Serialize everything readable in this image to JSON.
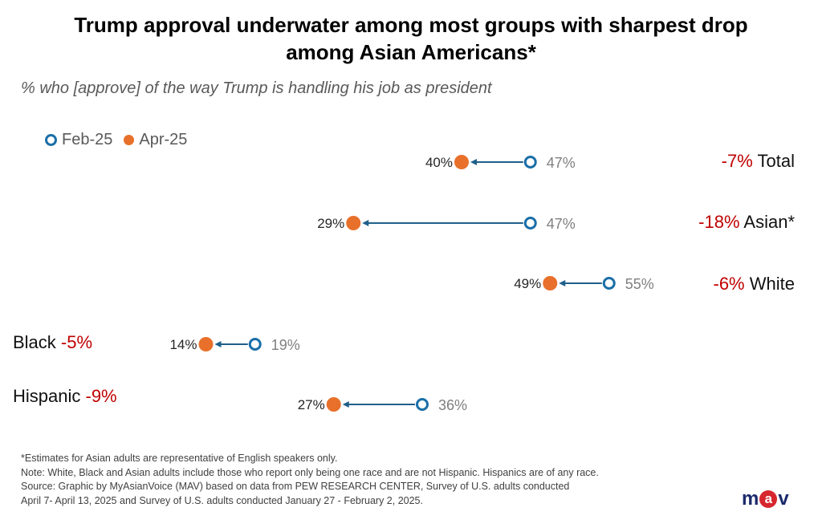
{
  "header": {
    "title_line1": "Trump approval underwater among most groups with sharpest drop",
    "title_line2": "among Asian Americans*",
    "subtitle": "% who [approve] of the way Trump is handling his job as president"
  },
  "legend": {
    "feb_label": "Feb-25",
    "apr_label": "Apr-25"
  },
  "colors": {
    "feb": "#1a6fa8",
    "apr": "#e8702a",
    "arrow": "#1f5f8b",
    "change": "#c00000",
    "feb_text": "#7f7f7f"
  },
  "chart_data": {
    "type": "dumbbell",
    "title": "Trump approval underwater among most groups with sharpest drop among Asian Americans*",
    "subtitle": "% who [approve] of the way Trump is handling his job as president",
    "series": [
      {
        "name": "Feb-25",
        "values": [
          47,
          47,
          55,
          19,
          36
        ]
      },
      {
        "name": "Apr-25",
        "values": [
          40,
          29,
          49,
          14,
          27
        ]
      }
    ],
    "categories": [
      "Total",
      "Asian*",
      "White",
      "Black",
      "Hispanic"
    ],
    "rows": [
      {
        "group": "Total",
        "feb": 47,
        "apr": 40,
        "feb_label": "47%",
        "apr_label": "40%",
        "change": "-7%"
      },
      {
        "group": "Asian*",
        "feb": 47,
        "apr": 29,
        "feb_label": "47%",
        "apr_label": "29%",
        "change": "-18%"
      },
      {
        "group": "White",
        "feb": 55,
        "apr": 49,
        "feb_label": "55%",
        "apr_label": "49%",
        "change": "-6%"
      },
      {
        "group": "Black",
        "feb": 19,
        "apr": 14,
        "feb_label": "19%",
        "apr_label": "14%",
        "change": "-5%"
      },
      {
        "group": "Hispanic",
        "feb": 36,
        "apr": 27,
        "feb_label": "36%",
        "apr_label": "27%",
        "change": "-9%"
      }
    ]
  },
  "footnotes": {
    "line1": "*Estimates for Asian adults are representative of English speakers only.",
    "line2": "Note: White, Black and Asian adults include those who report only being one race and are not Hispanic. Hispanics are of any race.",
    "line3": "Source: Graphic by MyAsianVoice (MAV) based on data  from PEW RESEARCH CENTER, Survey of U.S. adults conducted",
    "line4": "April 7- April 13, 2025 and Survey of U.S. adults conducted January 27 - February 2, 2025."
  },
  "logo": {
    "m": "m",
    "a": "a",
    "v": "v"
  }
}
